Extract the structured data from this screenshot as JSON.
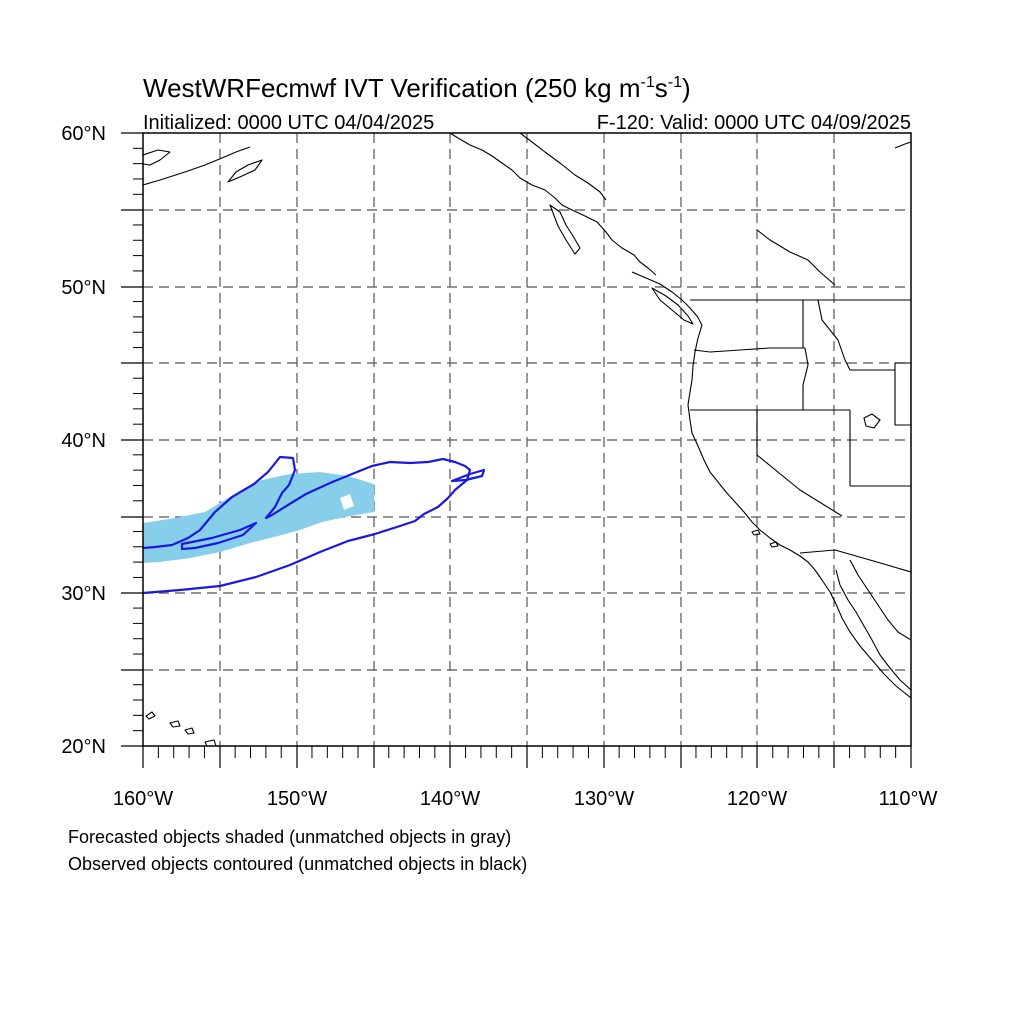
{
  "title": {
    "main": "WestWRFecmwf IVT Verification (250 kg m",
    "exp1": "-1",
    "mid": "s",
    "exp2": "-1",
    "close": ")"
  },
  "subtitle": {
    "left": "Initialized: 0000 UTC 04/04/2025",
    "right": "F-120: Valid: 0000 UTC 04/09/2025"
  },
  "axes": {
    "lat_labels": [
      "60°N",
      "50°N",
      "40°N",
      "30°N",
      "20°N"
    ],
    "lon_labels": [
      "160°W",
      "150°W",
      "140°W",
      "130°W",
      "120°W",
      "110°W"
    ],
    "lat_range": [
      20,
      60
    ],
    "lon_range": [
      -160,
      -110
    ],
    "grid": "dashed every 5 degrees"
  },
  "legend": {
    "line1": "Forecasted objects shaded (unmatched objects in gray)",
    "line2": "Observed objects contoured (unmatched objects in black)"
  },
  "colors": {
    "forecast_fill": "#87ceeb",
    "observed_contour": "#1a1adc",
    "coastline": "#000000",
    "grid": "#555555"
  }
}
